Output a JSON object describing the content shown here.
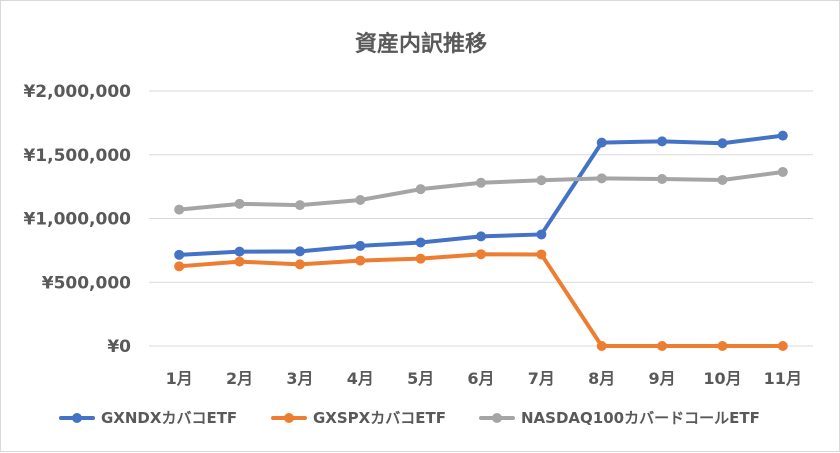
{
  "chart_data": {
    "type": "line",
    "title": "資産内訳推移",
    "categories": [
      "1月",
      "2月",
      "3月",
      "4月",
      "5月",
      "6月",
      "7月",
      "8月",
      "9月",
      "10月",
      "11月"
    ],
    "ylim": [
      0,
      2000000
    ],
    "yticks": [
      0,
      500000,
      1000000,
      1500000,
      2000000
    ],
    "ytick_labels": [
      "¥0",
      "¥500,000",
      "¥1,000,000",
      "¥1,500,000",
      "¥2,000,000"
    ],
    "grid": true,
    "legend_position": "bottom",
    "series": [
      {
        "name": "GXNDXカバコETF",
        "color": "#4472c4",
        "values": [
          715000,
          740000,
          742000,
          785000,
          812000,
          860000,
          875000,
          1595000,
          1605000,
          1590000,
          1650000
        ]
      },
      {
        "name": "GXSPXカバコETF",
        "color": "#ed7d31",
        "values": [
          625000,
          662000,
          640000,
          670000,
          685000,
          720000,
          718000,
          0,
          0,
          0,
          0
        ]
      },
      {
        "name": "NASDAQ100カバードコールETF",
        "color": "#a5a5a5",
        "values": [
          1070000,
          1115000,
          1105000,
          1145000,
          1230000,
          1280000,
          1300000,
          1315000,
          1310000,
          1302000,
          1365000
        ]
      }
    ]
  }
}
